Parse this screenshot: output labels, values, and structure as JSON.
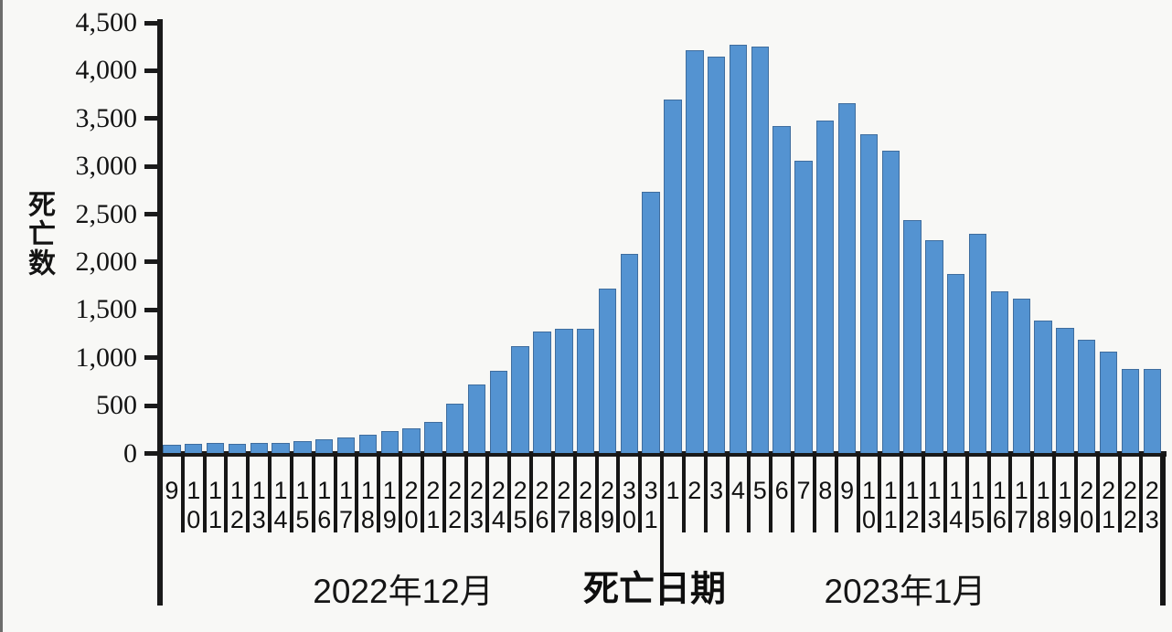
{
  "chart_data": {
    "type": "bar",
    "title": "",
    "ylabel": "死亡数",
    "xlabel": "死亡日期",
    "ylim": [
      0,
      4500
    ],
    "y_tick_step": 500,
    "y_tick_labels": [
      "0",
      "500",
      "1,000",
      "1,500",
      "2,000",
      "2,500",
      "3,000",
      "3,500",
      "4,000",
      "4,500"
    ],
    "grid": "off",
    "legend": "none",
    "bar_color": "#5493d1",
    "bar_border_color": "#3f6d9e",
    "axis_color": "#1a1a1a",
    "groups": [
      {
        "label": "2022年12月",
        "days": [
          "9",
          "10",
          "11",
          "12",
          "13",
          "14",
          "15",
          "16",
          "17",
          "18",
          "19",
          "20",
          "21",
          "22",
          "23",
          "24",
          "25",
          "26",
          "27",
          "28",
          "29",
          "30",
          "31"
        ],
        "values": [
          90,
          100,
          105,
          100,
          105,
          110,
          125,
          145,
          170,
          200,
          230,
          260,
          325,
          520,
          720,
          860,
          1120,
          1270,
          1300,
          1300,
          1720,
          2090,
          2730
        ]
      },
      {
        "label": "2023年1月",
        "days": [
          "1",
          "2",
          "3",
          "4",
          "5",
          "6",
          "7",
          "8",
          "9",
          "10",
          "11",
          "12",
          "13",
          "14",
          "15",
          "16",
          "17",
          "18",
          "19",
          "20",
          "21",
          "22",
          "23"
        ],
        "values": [
          3700,
          4210,
          4150,
          4270,
          4250,
          3420,
          3060,
          3480,
          3660,
          3340,
          3160,
          2440,
          2230,
          1880,
          2300,
          1690,
          1620,
          1390,
          1310,
          1190,
          1060,
          880,
          880
        ]
      }
    ]
  }
}
